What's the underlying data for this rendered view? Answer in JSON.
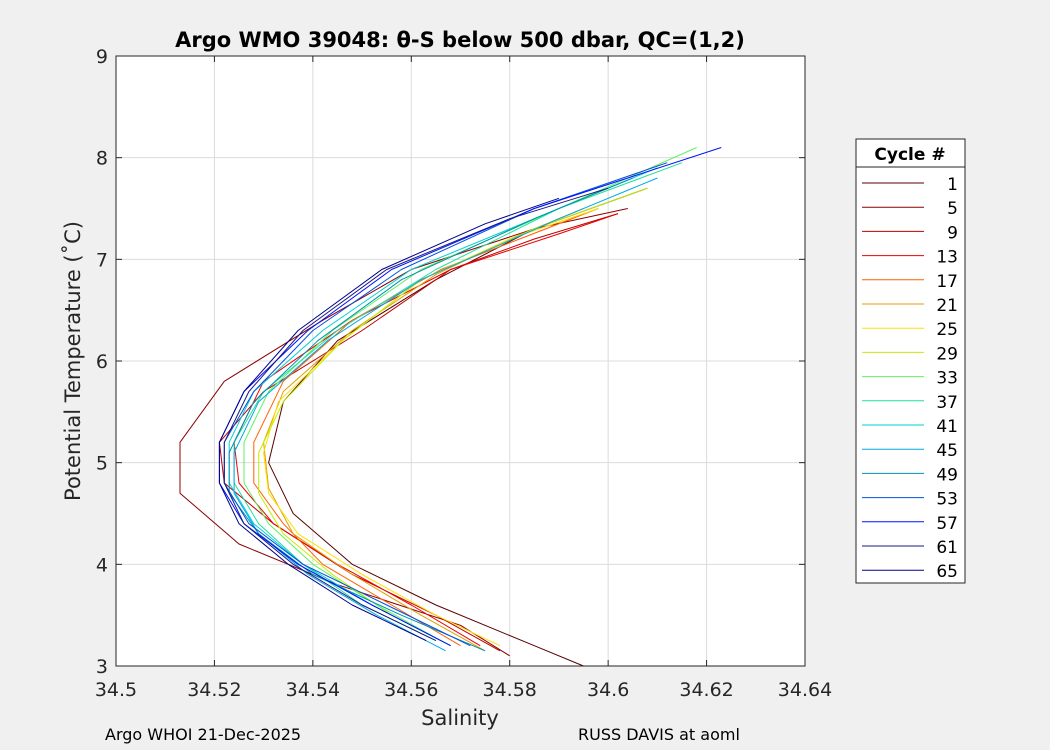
{
  "chart_data": {
    "type": "line",
    "title": "Argo WMO 39048: θ-S below 500 dbar,  QC=(1,2)",
    "xlabel": "Salinity",
    "ylabel": "Potential Temperature (˚C)",
    "xlim": [
      34.5,
      34.64
    ],
    "ylim": [
      3,
      9
    ],
    "xticks": [
      "34.5",
      "34.52",
      "34.54",
      "34.56",
      "34.58",
      "34.6",
      "34.62",
      "34.64"
    ],
    "yticks": [
      "3",
      "4",
      "5",
      "6",
      "7",
      "8",
      "9"
    ],
    "grid": true,
    "legend_title": "Cycle #",
    "legend_position": "right",
    "series": [
      {
        "name": "1",
        "color": "#5a0000",
        "salinity": [
          34.595,
          34.585,
          34.565,
          34.548,
          34.536,
          34.531,
          34.534,
          34.545,
          34.565,
          34.585,
          34.608
        ],
        "theta": [
          3.0,
          3.2,
          3.6,
          4.0,
          4.5,
          5.0,
          5.6,
          6.2,
          6.8,
          7.3,
          7.7
        ]
      },
      {
        "name": "5",
        "color": "#8c0000",
        "salinity": [
          34.58,
          34.57,
          34.545,
          34.525,
          34.513,
          34.513,
          34.522,
          34.542,
          34.56,
          34.585,
          34.604
        ],
        "theta": [
          3.1,
          3.4,
          3.8,
          4.2,
          4.7,
          5.2,
          5.8,
          6.4,
          6.9,
          7.3,
          7.5
        ]
      },
      {
        "name": "9",
        "color": "#c00000",
        "salinity": [
          34.578,
          34.565,
          34.548,
          34.532,
          34.522,
          34.521,
          34.53,
          34.55,
          34.568,
          34.585,
          34.602
        ],
        "theta": [
          3.15,
          3.5,
          3.9,
          4.4,
          4.8,
          5.2,
          5.7,
          6.3,
          6.9,
          7.2,
          7.45
        ]
      },
      {
        "name": "13",
        "color": "#ec0000",
        "salinity": [
          34.574,
          34.56,
          34.545,
          34.532,
          34.525,
          34.524,
          34.53,
          34.548,
          34.568,
          34.59,
          34.602
        ],
        "theta": [
          3.2,
          3.6,
          4.0,
          4.4,
          4.8,
          5.2,
          5.8,
          6.4,
          6.9,
          7.25,
          7.45
        ]
      },
      {
        "name": "17",
        "color": "#ff6000",
        "salinity": [
          34.57,
          34.556,
          34.542,
          34.534,
          34.528,
          34.528,
          34.534,
          34.548,
          34.566,
          34.582,
          34.598
        ],
        "theta": [
          3.2,
          3.6,
          4.0,
          4.4,
          4.8,
          5.2,
          5.8,
          6.4,
          6.9,
          7.2,
          7.5
        ]
      },
      {
        "name": "21",
        "color": "#e0a000",
        "salinity": [
          34.575,
          34.562,
          34.548,
          34.536,
          34.531,
          34.53,
          34.534,
          34.548,
          34.565,
          34.58,
          34.595
        ],
        "theta": [
          3.15,
          3.5,
          3.9,
          4.3,
          4.75,
          5.2,
          5.7,
          6.3,
          6.85,
          7.2,
          7.5
        ]
      },
      {
        "name": "25",
        "color": "#ffe000",
        "salinity": [
          34.578,
          34.565,
          34.55,
          34.537,
          34.531,
          34.53,
          34.533,
          34.546,
          34.562,
          34.58,
          34.598
        ],
        "theta": [
          3.2,
          3.5,
          3.9,
          4.3,
          4.7,
          5.1,
          5.6,
          6.2,
          6.8,
          7.2,
          7.5
        ]
      },
      {
        "name": "29",
        "color": "#c0f000",
        "salinity": [
          34.568,
          34.556,
          34.544,
          34.534,
          34.529,
          34.529,
          34.534,
          34.546,
          34.562,
          34.585,
          34.608
        ],
        "theta": [
          3.2,
          3.5,
          3.9,
          4.3,
          4.7,
          5.1,
          5.6,
          6.2,
          6.8,
          7.3,
          7.7
        ]
      },
      {
        "name": "33",
        "color": "#60f060",
        "salinity": [
          34.566,
          34.553,
          34.54,
          34.531,
          34.526,
          34.526,
          34.531,
          34.544,
          34.562,
          34.59,
          34.618
        ],
        "theta": [
          3.25,
          3.6,
          4.0,
          4.4,
          4.8,
          5.2,
          5.7,
          6.3,
          6.9,
          7.5,
          8.1
        ]
      },
      {
        "name": "37",
        "color": "#20e0a0",
        "salinity": [
          34.565,
          34.55,
          34.538,
          34.529,
          34.524,
          34.524,
          34.53,
          34.545,
          34.565,
          34.59,
          34.615
        ],
        "theta": [
          3.25,
          3.6,
          4.0,
          4.4,
          4.8,
          5.2,
          5.7,
          6.3,
          6.9,
          7.5,
          7.95
        ]
      },
      {
        "name": "41",
        "color": "#00d0d0",
        "salinity": [
          34.568,
          34.552,
          34.538,
          34.528,
          34.523,
          34.523,
          34.528,
          34.542,
          34.56,
          34.585,
          34.61
        ],
        "theta": [
          3.2,
          3.6,
          4.0,
          4.4,
          4.8,
          5.2,
          5.7,
          6.3,
          6.9,
          7.4,
          7.9
        ]
      },
      {
        "name": "45",
        "color": "#00a8e8",
        "salinity": [
          34.567,
          34.553,
          34.539,
          34.529,
          34.524,
          34.524,
          34.529,
          34.543,
          34.562,
          34.59,
          34.61
        ],
        "theta": [
          3.15,
          3.5,
          3.9,
          4.3,
          4.7,
          5.1,
          5.6,
          6.2,
          6.8,
          7.4,
          7.8
        ]
      },
      {
        "name": "49",
        "color": "#0090b0",
        "salinity": [
          34.575,
          34.558,
          34.54,
          34.529,
          34.523,
          34.523,
          34.528,
          34.541,
          34.558,
          34.585,
          34.605
        ],
        "theta": [
          3.15,
          3.5,
          3.9,
          4.3,
          4.7,
          5.1,
          5.6,
          6.2,
          6.8,
          7.4,
          7.8
        ]
      },
      {
        "name": "53",
        "color": "#0050e0",
        "salinity": [
          34.572,
          34.555,
          34.538,
          34.527,
          34.522,
          34.522,
          34.528,
          34.54,
          34.558,
          34.585,
          34.612
        ],
        "theta": [
          3.2,
          3.6,
          4.0,
          4.4,
          4.8,
          5.2,
          5.7,
          6.3,
          6.9,
          7.5,
          7.95
        ]
      },
      {
        "name": "57",
        "color": "#0010ff",
        "salinity": [
          34.568,
          34.552,
          34.537,
          34.526,
          34.521,
          34.521,
          34.526,
          34.539,
          34.556,
          34.585,
          34.623
        ],
        "theta": [
          3.2,
          3.6,
          4.0,
          4.4,
          4.8,
          5.2,
          5.7,
          6.3,
          6.9,
          7.5,
          8.1
        ]
      },
      {
        "name": "61",
        "color": "#1a1a80",
        "salinity": [
          34.565,
          34.55,
          34.536,
          34.526,
          34.522,
          34.522,
          34.527,
          34.538,
          34.555,
          34.58,
          34.6
        ],
        "theta": [
          3.25,
          3.6,
          4.0,
          4.4,
          4.8,
          5.2,
          5.7,
          6.3,
          6.9,
          7.4,
          7.7
        ]
      },
      {
        "name": "65",
        "color": "#00008c",
        "salinity": [
          34.563,
          34.548,
          34.535,
          34.525,
          34.521,
          34.521,
          34.526,
          34.537,
          34.554,
          34.575,
          34.59
        ],
        "theta": [
          3.25,
          3.6,
          4.0,
          4.4,
          4.8,
          5.2,
          5.7,
          6.3,
          6.9,
          7.35,
          7.6
        ]
      }
    ]
  },
  "footer": {
    "left": "Argo WHOI 21-Dec-2025",
    "right": "RUSS DAVIS at aoml"
  }
}
